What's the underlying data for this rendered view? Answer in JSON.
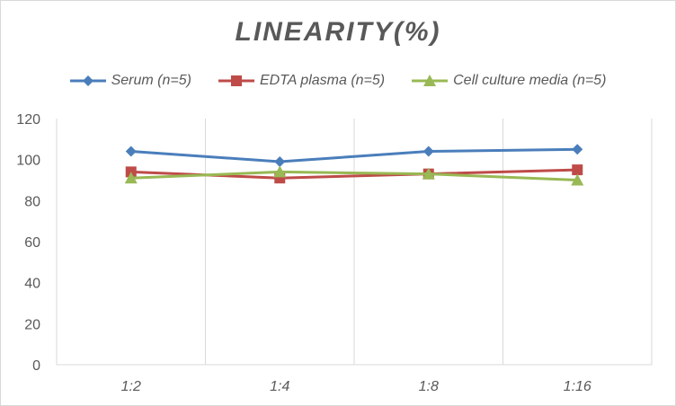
{
  "chart_data": {
    "type": "line",
    "title": "LINEARITY(%)",
    "categories": [
      "1:2",
      "1:4",
      "1:8",
      "1:16"
    ],
    "series": [
      {
        "name": "Serum (n=5)",
        "values": [
          104,
          99,
          104,
          105
        ],
        "color": "#4a7ebb",
        "marker": "diamond"
      },
      {
        "name": "EDTA plasma (n=5)",
        "values": [
          94,
          91,
          93,
          95
        ],
        "color": "#be4b48",
        "marker": "square"
      },
      {
        "name": "Cell culture media (n=5)",
        "values": [
          91,
          94,
          93,
          90
        ],
        "color": "#98b954",
        "marker": "triangle"
      }
    ],
    "ylim": [
      0,
      120
    ],
    "yticks": [
      0,
      20,
      40,
      60,
      80,
      100,
      120
    ],
    "grid": "vertical category separators only",
    "legend": "top"
  }
}
